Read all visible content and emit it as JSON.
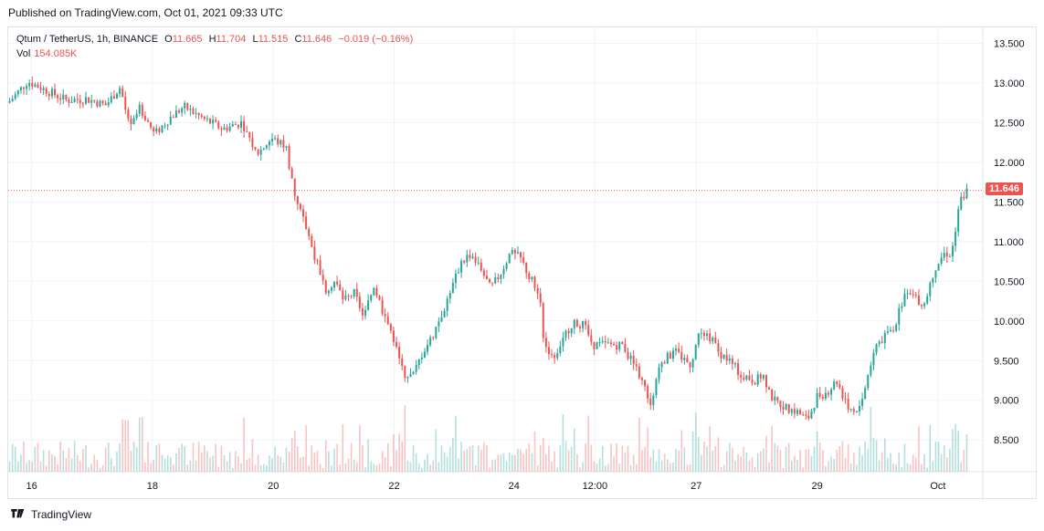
{
  "header": {
    "published": "Published on TradingView.com, Oct 01, 2021 09:33 UTC"
  },
  "legend": {
    "symbol": "Qtum / TetherUS, 1h, BINANCE",
    "o_label": "O",
    "o_value": "11.665",
    "h_label": "H",
    "h_value": "11.704",
    "l_label": "L",
    "l_value": "11.515",
    "c_label": "C",
    "c_value": "11.646",
    "change": "−0.019 (−0.16%)",
    "vol_label": "Vol",
    "vol_value": "154.085K"
  },
  "footer": {
    "brand": "TradingView"
  },
  "colors": {
    "up": "#26a69a",
    "down": "#ef5350",
    "grid": "#f0f3fa",
    "text": "#131722"
  },
  "chart_data": {
    "type": "candlestick",
    "symbol": "Qtum / TetherUS",
    "interval": "1h",
    "exchange": "BINANCE",
    "ylim": [
      8.1,
      13.7
    ],
    "y_ticks": [
      8.5,
      9.0,
      9.5,
      10.0,
      10.5,
      11.0,
      11.5,
      12.0,
      12.5,
      13.0,
      13.5
    ],
    "y_tick_labels": [
      "8.500",
      "9.000",
      "9.500",
      "10.000",
      "10.500",
      "11.000",
      "11.500",
      "12.000",
      "12.500",
      "13.000",
      "13.500"
    ],
    "x_ticks": [
      {
        "label": "16",
        "pos": 0.024
      },
      {
        "label": "18",
        "pos": 0.148
      },
      {
        "label": "20",
        "pos": 0.272
      },
      {
        "label": "22",
        "pos": 0.396
      },
      {
        "label": "24",
        "pos": 0.519
      },
      {
        "label": "12:00",
        "pos": 0.602
      },
      {
        "label": "27",
        "pos": 0.706
      },
      {
        "label": "29",
        "pos": 0.83
      },
      {
        "label": "Oct",
        "pos": 0.954
      }
    ],
    "last_price": 11.646,
    "last_price_label": "11.646",
    "price_path": [
      [
        0.0,
        12.75
      ],
      [
        0.02,
        13.02
      ],
      [
        0.04,
        12.9
      ],
      [
        0.06,
        12.78
      ],
      [
        0.08,
        12.8
      ],
      [
        0.1,
        12.72
      ],
      [
        0.115,
        12.95
      ],
      [
        0.125,
        12.4
      ],
      [
        0.135,
        12.7
      ],
      [
        0.15,
        12.35
      ],
      [
        0.165,
        12.55
      ],
      [
        0.18,
        12.7
      ],
      [
        0.2,
        12.55
      ],
      [
        0.22,
        12.42
      ],
      [
        0.24,
        12.5
      ],
      [
        0.255,
        12.1
      ],
      [
        0.27,
        12.3
      ],
      [
        0.285,
        12.2
      ],
      [
        0.295,
        11.5
      ],
      [
        0.305,
        11.2
      ],
      [
        0.315,
        10.8
      ],
      [
        0.325,
        10.4
      ],
      [
        0.335,
        10.5
      ],
      [
        0.345,
        10.25
      ],
      [
        0.355,
        10.35
      ],
      [
        0.365,
        10.05
      ],
      [
        0.375,
        10.45
      ],
      [
        0.385,
        10.1
      ],
      [
        0.395,
        9.8
      ],
      [
        0.405,
        9.35
      ],
      [
        0.415,
        9.3
      ],
      [
        0.425,
        9.6
      ],
      [
        0.435,
        9.8
      ],
      [
        0.445,
        10.1
      ],
      [
        0.455,
        10.4
      ],
      [
        0.465,
        10.75
      ],
      [
        0.475,
        10.85
      ],
      [
        0.485,
        10.65
      ],
      [
        0.495,
        10.4
      ],
      [
        0.505,
        10.6
      ],
      [
        0.515,
        10.85
      ],
      [
        0.525,
        10.8
      ],
      [
        0.535,
        10.55
      ],
      [
        0.545,
        10.35
      ],
      [
        0.55,
        9.7
      ],
      [
        0.56,
        9.55
      ],
      [
        0.57,
        9.8
      ],
      [
        0.58,
        10.0
      ],
      [
        0.59,
        9.95
      ],
      [
        0.6,
        9.7
      ],
      [
        0.615,
        9.7
      ],
      [
        0.63,
        9.7
      ],
      [
        0.64,
        9.5
      ],
      [
        0.65,
        9.25
      ],
      [
        0.66,
        8.95
      ],
      [
        0.67,
        9.5
      ],
      [
        0.685,
        9.6
      ],
      [
        0.7,
        9.45
      ],
      [
        0.71,
        9.9
      ],
      [
        0.72,
        9.8
      ],
      [
        0.73,
        9.6
      ],
      [
        0.74,
        9.5
      ],
      [
        0.75,
        9.35
      ],
      [
        0.765,
        9.25
      ],
      [
        0.775,
        9.3
      ],
      [
        0.785,
        9.0
      ],
      [
        0.8,
        8.9
      ],
      [
        0.81,
        8.85
      ],
      [
        0.82,
        8.75
      ],
      [
        0.83,
        9.05
      ],
      [
        0.84,
        9.1
      ],
      [
        0.85,
        9.25
      ],
      [
        0.86,
        8.95
      ],
      [
        0.87,
        8.8
      ],
      [
        0.88,
        9.2
      ],
      [
        0.89,
        9.7
      ],
      [
        0.9,
        9.8
      ],
      [
        0.91,
        9.95
      ],
      [
        0.92,
        10.35
      ],
      [
        0.93,
        10.3
      ],
      [
        0.94,
        10.2
      ],
      [
        0.95,
        10.65
      ],
      [
        0.96,
        10.85
      ],
      [
        0.968,
        10.85
      ],
      [
        0.976,
        11.5
      ],
      [
        0.985,
        11.66
      ]
    ],
    "volume_note": "Vol 154.085K"
  }
}
